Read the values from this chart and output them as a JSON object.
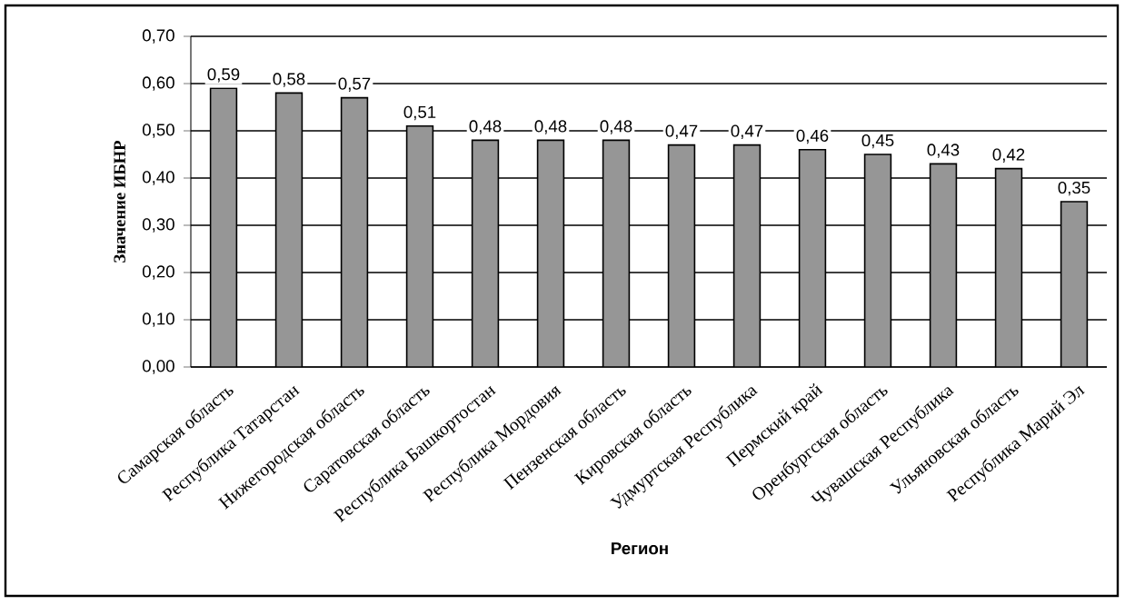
{
  "chart_data": {
    "type": "bar",
    "categories": [
      "Самарская область",
      "Республика Татарстан",
      "Нижегородская область",
      "Саратовская область",
      "Республика Башкортостан",
      "Республика Мордовия",
      "Пензенская область",
      "Кировская область",
      "Удмуртская Республика",
      "Пермский край",
      "Оренбургская область",
      "Чувашская Республика",
      "Ульяновская область",
      "Республика Марий Эл"
    ],
    "values": [
      0.59,
      0.58,
      0.57,
      0.51,
      0.48,
      0.48,
      0.48,
      0.47,
      0.47,
      0.46,
      0.45,
      0.43,
      0.42,
      0.35
    ],
    "value_labels": [
      "0,59",
      "0,58",
      "0,57",
      "0,51",
      "0,48",
      "0,48",
      "0,48",
      "0,47",
      "0,47",
      "0,46",
      "0,45",
      "0,43",
      "0,42",
      "0,35"
    ],
    "color": "#969696",
    "xlabel": "Регион",
    "ylabel": "Значение ИБНР",
    "ylim": [
      0,
      0.7
    ],
    "yticks": [
      {
        "value": 0,
        "label": "0,00"
      },
      {
        "value": 0.1,
        "label": "0,10"
      },
      {
        "value": 0.2,
        "label": "0,20"
      },
      {
        "value": 0.3,
        "label": "0,30"
      },
      {
        "value": 0.4,
        "label": "0,40"
      },
      {
        "value": 0.5,
        "label": "0,50"
      },
      {
        "value": 0.6,
        "label": "0,60"
      },
      {
        "value": 0.7,
        "label": "0,70"
      }
    ],
    "grid": "y"
  }
}
